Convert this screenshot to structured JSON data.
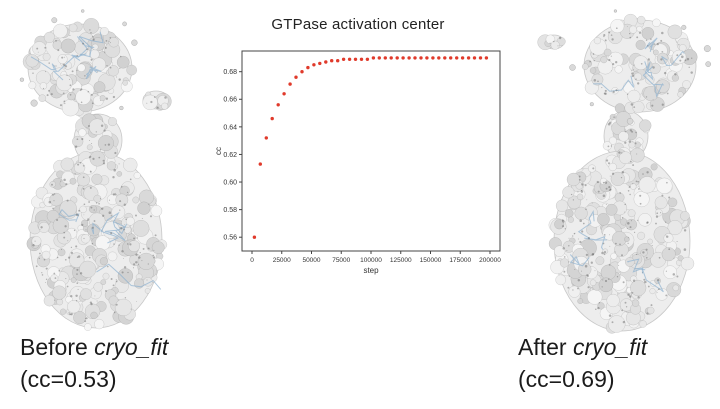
{
  "figure": {
    "left_caption": {
      "prefix": "Before ",
      "italic": "cryo_fit",
      "cc": "(cc=0.53)"
    },
    "right_caption": {
      "prefix": "After ",
      "italic": "cryo_fit",
      "cc": "(cc=0.69)"
    }
  },
  "chart_data": {
    "type": "scatter",
    "title": "GTPase activation center",
    "xlabel": "step",
    "ylabel": "cc",
    "xlim": [
      0,
      200000
    ],
    "ylim": [
      0.55,
      0.695
    ],
    "xticks": [
      0,
      25000,
      50000,
      75000,
      100000,
      125000,
      150000,
      175000,
      200000
    ],
    "yticks": [
      0.56,
      0.58,
      0.6,
      0.62,
      0.64,
      0.66,
      0.68
    ],
    "marker_color": "#e03a2b",
    "grid": false,
    "legend": "none",
    "series": [
      {
        "name": "cc",
        "x": [
          2000,
          7000,
          12000,
          17000,
          22000,
          27000,
          32000,
          37000,
          42000,
          47000,
          52000,
          57000,
          62000,
          67000,
          72000,
          77000,
          82000,
          87000,
          92000,
          97000,
          102000,
          107000,
          112000,
          117000,
          122000,
          127000,
          132000,
          137000,
          142000,
          147000,
          152000,
          157000,
          162000,
          167000,
          172000,
          177000,
          182000,
          187000,
          192000,
          197000
        ],
        "y": [
          0.56,
          0.613,
          0.632,
          0.646,
          0.656,
          0.664,
          0.671,
          0.676,
          0.68,
          0.683,
          0.685,
          0.686,
          0.687,
          0.688,
          0.688,
          0.689,
          0.689,
          0.689,
          0.689,
          0.689,
          0.69,
          0.69,
          0.69,
          0.69,
          0.69,
          0.69,
          0.69,
          0.69,
          0.69,
          0.69,
          0.69,
          0.69,
          0.69,
          0.69,
          0.69,
          0.69,
          0.69,
          0.69,
          0.69,
          0.69
        ]
      }
    ]
  }
}
